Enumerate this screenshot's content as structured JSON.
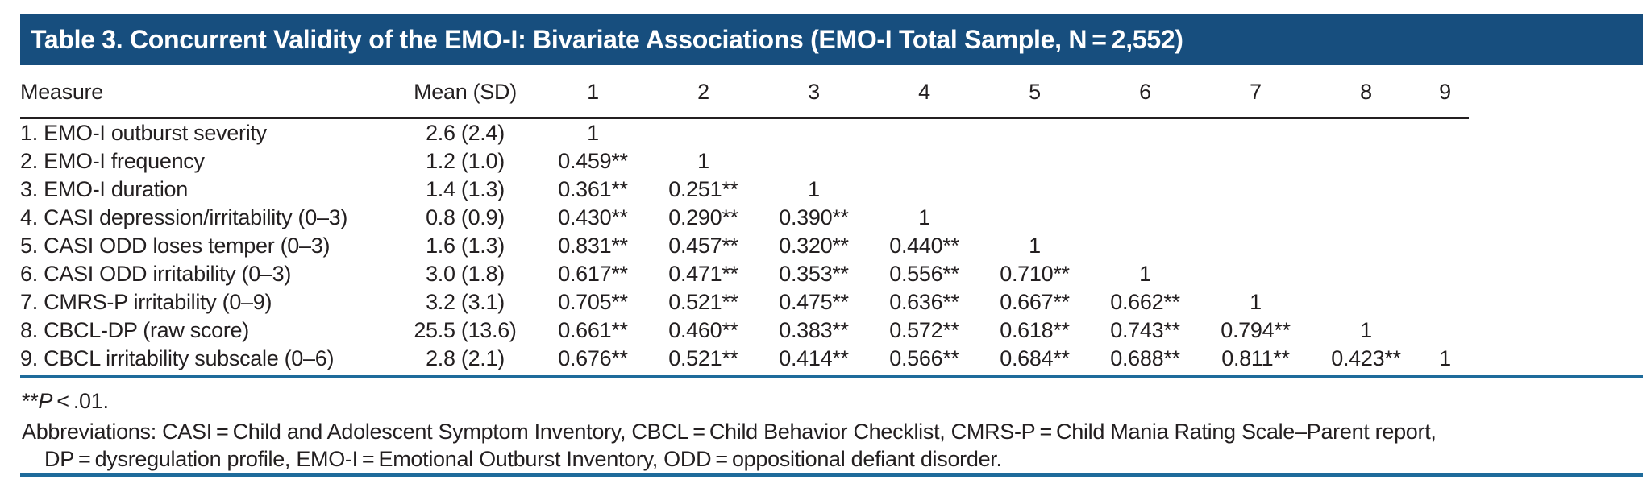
{
  "table": {
    "title": "Table 3. Concurrent Validity of the EMO-I: Bivariate Associations (EMO-I Total Sample, N = 2,552)",
    "columns": [
      "Measure",
      "Mean (SD)",
      "1",
      "2",
      "3",
      "4",
      "5",
      "6",
      "7",
      "8",
      "9"
    ],
    "rows": [
      {
        "measure": "1. EMO-I outburst severity",
        "mean_sd": "2.6 (2.4)",
        "values": [
          "1"
        ]
      },
      {
        "measure": "2. EMO-I frequency",
        "mean_sd": "1.2 (1.0)",
        "values": [
          "0.459**",
          "1"
        ]
      },
      {
        "measure": "3. EMO-I duration",
        "mean_sd": "1.4 (1.3)",
        "values": [
          "0.361**",
          "0.251**",
          "1"
        ]
      },
      {
        "measure": "4. CASI depression/irritability (0–3)",
        "mean_sd": "0.8 (0.9)",
        "values": [
          "0.430**",
          "0.290**",
          "0.390**",
          "1"
        ]
      },
      {
        "measure": "5. CASI ODD loses temper (0–3)",
        "mean_sd": "1.6 (1.3)",
        "values": [
          "0.831**",
          "0.457**",
          "0.320**",
          "0.440**",
          "1"
        ]
      },
      {
        "measure": "6. CASI ODD irritability (0–3)",
        "mean_sd": "3.0 (1.8)",
        "values": [
          "0.617**",
          "0.471**",
          "0.353**",
          "0.556**",
          "0.710**",
          "1"
        ]
      },
      {
        "measure": "7. CMRS-P irritability (0–9)",
        "mean_sd": "3.2 (3.1)",
        "values": [
          "0.705**",
          "0.521**",
          "0.475**",
          "0.636**",
          "0.667**",
          "0.662**",
          "1"
        ]
      },
      {
        "measure": "8. CBCL-DP (raw score)",
        "mean_sd": "25.5 (13.6)",
        "values": [
          "0.661**",
          "0.460**",
          "0.383**",
          "0.572**",
          "0.618**",
          "0.743**",
          "0.794**",
          "1"
        ]
      },
      {
        "measure": "9. CBCL irritability subscale (0–6)",
        "mean_sd": "2.8 (2.1)",
        "values": [
          "0.676**",
          "0.521**",
          "0.414**",
          "0.566**",
          "0.684**",
          "0.688**",
          "0.811**",
          "0.423**",
          "1"
        ]
      }
    ],
    "footnote": {
      "stars": "**",
      "p": "P",
      "rest": " < .01."
    },
    "abbreviations": [
      "Abbreviations: CASI = Child and Adolescent Symptom Inventory, CBCL = Child Behavior Checklist, CMRS-P = Child Mania Rating Scale–Parent report,",
      "DP = dysregulation profile, EMO-I = Emotional Outburst Inventory, ODD = oppositional defiant disorder."
    ]
  },
  "colors": {
    "title_bar_bg": "#174e7e",
    "title_text": "#ffffff",
    "rule_blue": "#1e6b9b",
    "body_text": "#231f20",
    "background": "#ffffff"
  }
}
